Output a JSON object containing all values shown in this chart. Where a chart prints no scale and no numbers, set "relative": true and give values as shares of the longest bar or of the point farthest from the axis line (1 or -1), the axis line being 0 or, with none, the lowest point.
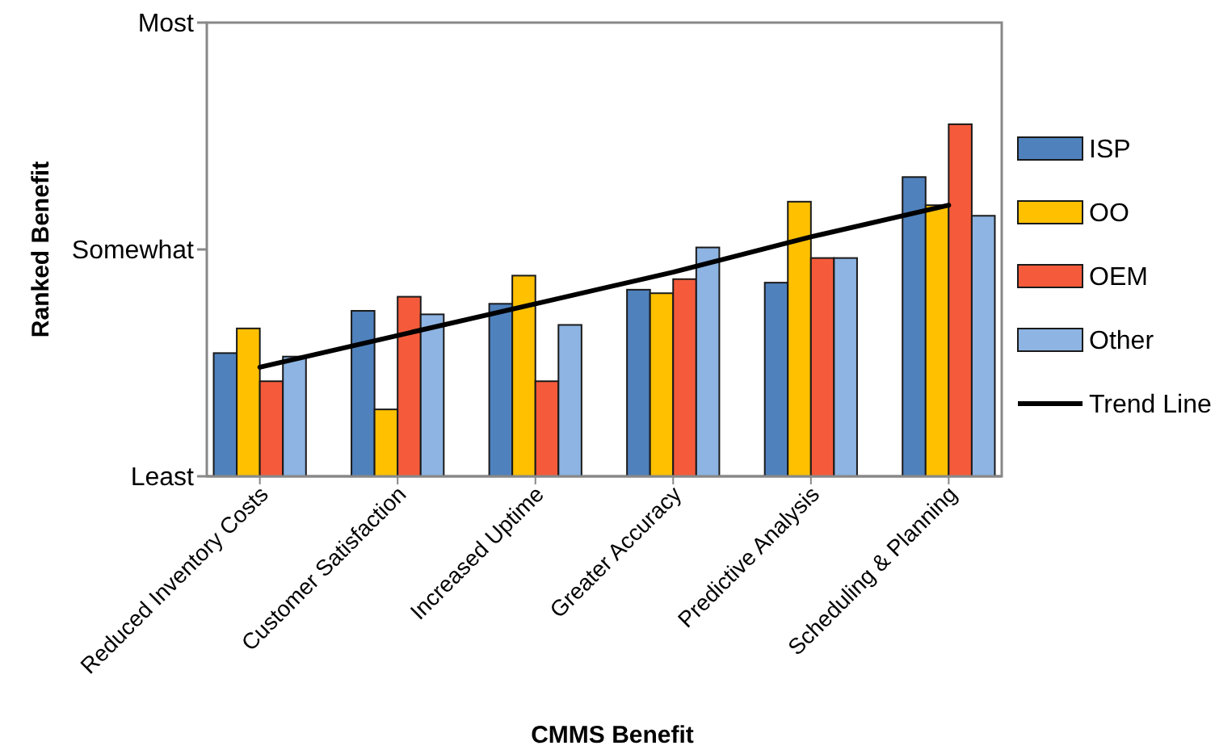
{
  "chart_data": {
    "type": "bar",
    "xlabel": "CMMS Benefit",
    "ylabel": "Ranked Benefit",
    "relative": true,
    "categories": [
      "Reduced Inventory Costs",
      "Customer Satisfaction",
      "Increased Uptime",
      "Greater Accuracy",
      "Predictive Analysis",
      "Scheduling & Planning"
    ],
    "series": [
      {
        "name": "ISP",
        "color": "#4f81bd",
        "values": [
          0.35,
          0.47,
          0.49,
          0.53,
          0.55,
          0.85
        ]
      },
      {
        "name": "OO",
        "color": "#ffc000",
        "values": [
          0.42,
          0.19,
          0.57,
          0.52,
          0.78,
          0.77
        ]
      },
      {
        "name": "OEM",
        "color": "#f55b3b",
        "values": [
          0.27,
          0.51,
          0.27,
          0.56,
          0.62,
          1
        ]
      },
      {
        "name": "Other",
        "color": "#8db4e2",
        "values": [
          0.34,
          0.46,
          0.43,
          0.65,
          0.62,
          0.74
        ]
      },
      {
        "name": "Trend Line",
        "type": "line",
        "color": "#000000",
        "values": [
          0.31,
          0.4,
          0.49,
          0.58,
          0.68,
          0.77
        ]
      }
    ],
    "annotations": [
      "Least",
      "Somewhat",
      "Most"
    ],
    "legend": "right"
  }
}
